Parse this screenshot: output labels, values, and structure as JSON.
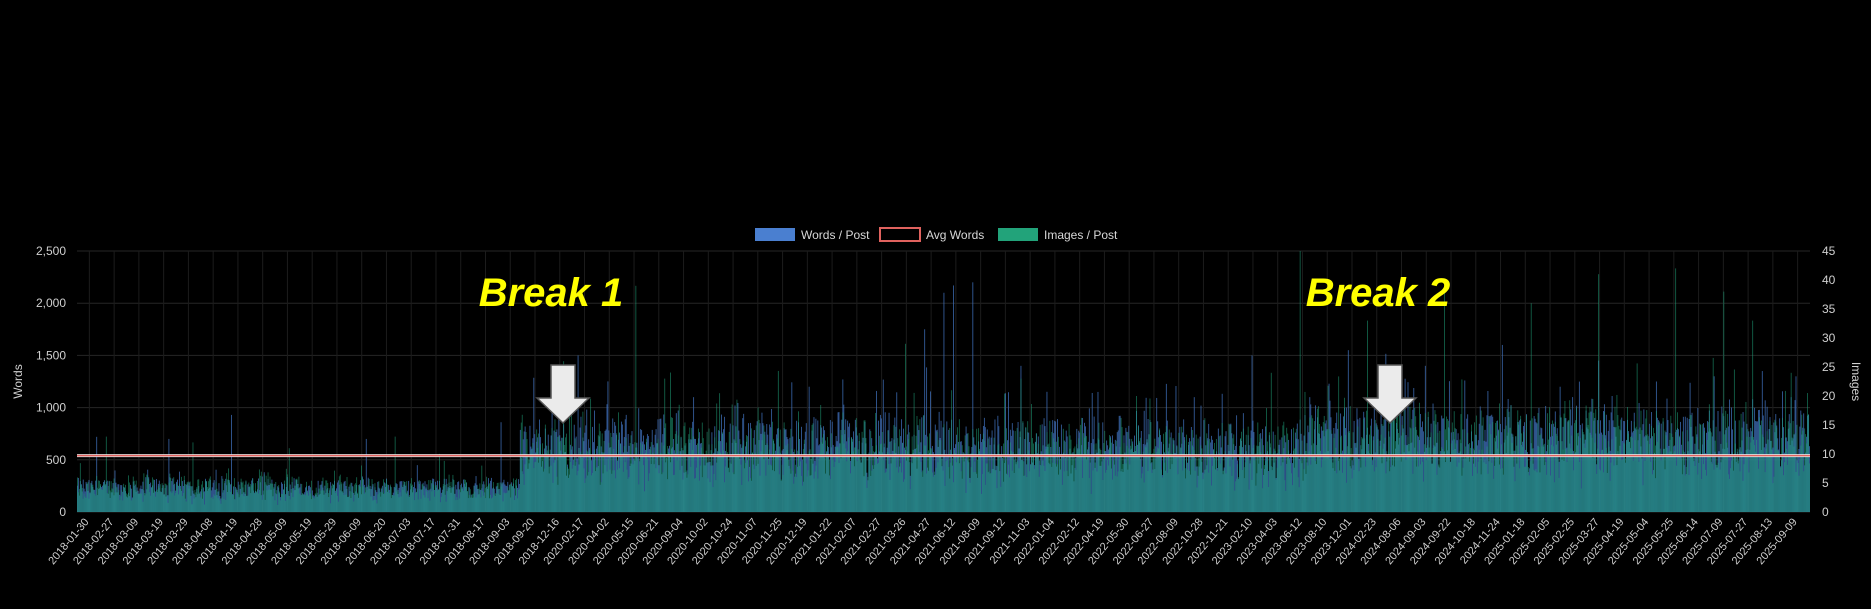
{
  "chart_data": {
    "type": "bar",
    "legend": [
      {
        "label": "Words / Post",
        "color": "#4a7fd0",
        "style": "filled"
      },
      {
        "label": "Avg Words",
        "color": "#e0625e",
        "style": "outline"
      },
      {
        "label": "Images / Post",
        "color": "#22a37a",
        "style": "filled"
      }
    ],
    "legend_position": "top-center",
    "ylabel_left": "Words",
    "ylabel_right": "Images",
    "ylim_left": [
      0,
      2500
    ],
    "ylim_right": [
      0,
      45
    ],
    "yticks_left": [
      "0",
      "500",
      "1,000",
      "1,500",
      "2,000",
      "2,500"
    ],
    "yticks_right": [
      "0",
      "5",
      "10",
      "15",
      "20",
      "25",
      "30",
      "35",
      "40",
      "45"
    ],
    "grid": true,
    "x_tick_labels": [
      "2018-01-30",
      "2018-02-27",
      "2018-03-09",
      "2018-03-19",
      "2018-03-29",
      "2018-04-08",
      "2018-04-19",
      "2018-04-28",
      "2018-05-09",
      "2018-05-19",
      "2018-05-29",
      "2018-06-09",
      "2018-06-20",
      "2018-07-03",
      "2018-07-17",
      "2018-07-31",
      "2018-08-17",
      "2018-09-03",
      "2018-09-20",
      "2018-12-16",
      "2020-02-17",
      "2020-04-02",
      "2020-05-15",
      "2020-06-21",
      "2020-09-04",
      "2020-10-02",
      "2020-10-24",
      "2020-11-07",
      "2020-11-25",
      "2020-12-19",
      "2021-01-22",
      "2021-02-07",
      "2021-02-27",
      "2021-03-26",
      "2021-04-27",
      "2021-06-12",
      "2021-08-09",
      "2021-09-12",
      "2021-11-03",
      "2022-01-04",
      "2022-02-12",
      "2022-04-19",
      "2022-05-30",
      "2022-06-27",
      "2022-08-09",
      "2022-10-28",
      "2022-11-21",
      "2023-02-10",
      "2023-04-03",
      "2023-06-12",
      "2023-08-10",
      "2023-12-01",
      "2024-02-23",
      "2024-08-06",
      "2024-09-03",
      "2024-09-22",
      "2024-10-18",
      "2024-11-24",
      "2025-01-18",
      "2025-02-05",
      "2025-02-25",
      "2025-03-27",
      "2025-04-19",
      "2025-05-04",
      "2025-05-25",
      "2025-06-14",
      "2025-07-09",
      "2025-07-27",
      "2025-08-13",
      "2025-09-09"
    ],
    "avg_words": 540,
    "series": [
      {
        "name": "Words / Post",
        "axis": "left",
        "segments": [
          {
            "count": 460,
            "base": 230,
            "amplitude": 120,
            "spikes": [
              [
                20,
                720
              ],
              [
                95,
                700
              ],
              [
                160,
                930
              ],
              [
                300,
                700
              ],
              [
                440,
                860
              ]
            ]
          },
          {
            "count": 820,
            "base": 620,
            "amplitude": 380,
            "spikes": [
              [
                60,
                1500
              ],
              [
                180,
                1100
              ],
              [
                300,
                1200
              ],
              [
                420,
                1750
              ],
              [
                440,
                2100
              ],
              [
                450,
                2170
              ],
              [
                470,
                2200
              ],
              [
                520,
                1400
              ],
              [
                600,
                1150
              ],
              [
                700,
                1100
              ],
              [
                760,
                1500
              ]
            ]
          },
          {
            "count": 520,
            "base": 720,
            "amplitude": 420,
            "spikes": [
              [
                40,
                1550
              ],
              [
                120,
                1400
              ],
              [
                200,
                1600
              ],
              [
                260,
                1200
              ],
              [
                300,
                1450
              ],
              [
                360,
                1250
              ],
              [
                420,
                1300
              ],
              [
                470,
                1350
              ],
              [
                500,
                1100
              ]
            ]
          }
        ]
      },
      {
        "name": "Images / Post",
        "axis": "right",
        "segments": [
          {
            "count": 460,
            "base": 4,
            "amplitude": 3,
            "spikes": [
              [
                30,
                13
              ],
              [
                120,
                12
              ],
              [
                220,
                11
              ],
              [
                330,
                13
              ],
              [
                420,
                8
              ]
            ]
          },
          {
            "count": 820,
            "base": 10,
            "amplitude": 7,
            "spikes": [
              [
                45,
                26
              ],
              [
                120,
                39
              ],
              [
                150,
                23
              ],
              [
                400,
                29
              ],
              [
                520,
                23
              ],
              [
                640,
                20
              ],
              [
                780,
                24
              ],
              [
                810,
                45
              ]
            ]
          },
          {
            "count": 520,
            "base": 12,
            "amplitude": 8,
            "spikes": [
              [
                60,
                33
              ],
              [
                140,
                40
              ],
              [
                230,
                36
              ],
              [
                300,
                41
              ],
              [
                380,
                42
              ],
              [
                430,
                38
              ],
              [
                460,
                33
              ],
              [
                500,
                24
              ]
            ]
          }
        ]
      }
    ],
    "annotations": [
      {
        "text": "Break 1",
        "color": "#ffff00",
        "at_x_label": "2018-12-16"
      },
      {
        "text": "Break 2",
        "color": "#ffff00",
        "at_x_label": "2024-02-23"
      }
    ]
  }
}
